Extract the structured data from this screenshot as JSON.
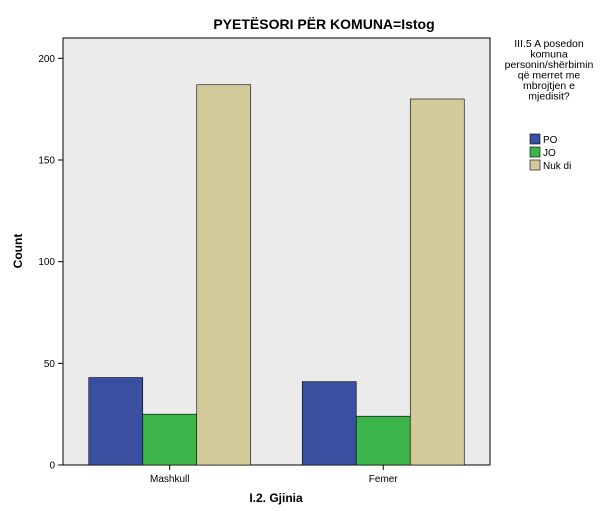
{
  "chart_data": {
    "type": "bar",
    "title": "PYETËSORI PËR KOMUNA=Istog",
    "xlabel": "I.2. Gjinia",
    "ylabel": "Count",
    "categories": [
      "Mashkull",
      "Femer"
    ],
    "series": [
      {
        "name": "PO",
        "values": [
          43,
          41
        ],
        "color": "#3A4FA0"
      },
      {
        "name": "JO",
        "values": [
          25,
          24
        ],
        "color": "#3BB54A"
      },
      {
        "name": "Nuk di",
        "values": [
          187,
          180
        ],
        "color": "#D2CA99"
      }
    ],
    "ylim": [
      0,
      210
    ],
    "yticks": [
      0,
      50,
      100,
      150,
      200
    ],
    "legend": {
      "title_lines": [
        "III.5 A posedon",
        "komuna",
        "personin/shërbimin",
        "që merret me",
        "mbrojtjen e",
        "mjedisit?"
      ],
      "position": "right"
    },
    "plot_background": "#EBEBEB",
    "grid": false
  }
}
